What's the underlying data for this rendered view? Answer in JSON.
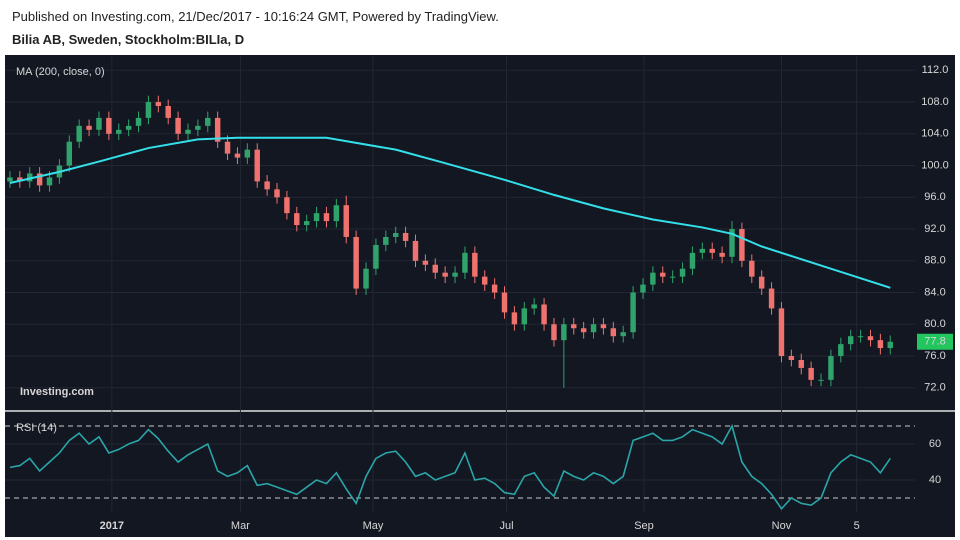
{
  "header": {
    "published": "Published on Investing.com, 21/Dec/2017 - 10:16:24 GMT, Powered by TradingView.",
    "symbol": "Bilia AB, Sweden, Stockholm:BILIa, D"
  },
  "chart_data": [
    {
      "type": "candlestick",
      "title": "MA (200, close, 0)",
      "watermark": "Investing.com",
      "x": [
        0,
        1,
        2,
        3,
        4,
        5,
        6,
        7,
        8,
        9,
        10,
        11,
        12,
        13,
        14,
        15,
        16,
        17,
        18,
        19,
        20,
        21,
        22,
        23,
        24,
        25,
        26,
        27,
        28,
        29,
        30,
        31,
        32,
        33,
        34,
        35,
        36,
        37,
        38,
        39,
        40,
        41,
        42,
        43,
        44,
        45,
        46,
        47,
        48,
        49,
        50,
        51,
        52,
        53,
        54,
        55,
        56,
        57,
        58,
        59,
        60,
        61,
        62,
        63,
        64,
        65,
        66,
        67,
        68,
        69,
        70,
        71,
        72,
        73,
        74,
        75,
        76,
        77,
        78,
        79,
        80,
        81,
        82,
        83,
        84,
        85,
        86,
        87,
        88,
        89
      ],
      "open": [
        98,
        98.5,
        98,
        99,
        97.5,
        98.5,
        100,
        103,
        105,
        104.5,
        106,
        104,
        104.5,
        105,
        106,
        108,
        107.5,
        106,
        104,
        104.5,
        105,
        106,
        103,
        101.5,
        101,
        102,
        98,
        97,
        96,
        94,
        92.5,
        93,
        94,
        93,
        95,
        91,
        84.5,
        87,
        90,
        91,
        91.5,
        90.5,
        88,
        87.5,
        86.5,
        86,
        86.5,
        89,
        86,
        85,
        84,
        81.5,
        80,
        82,
        82.5,
        80,
        78,
        80,
        79.5,
        79,
        80,
        79.5,
        78.5,
        79,
        84,
        85,
        86.5,
        86,
        86,
        87,
        89,
        89.5,
        89,
        88.5,
        92,
        88,
        86,
        84.5,
        82,
        76,
        75.5,
        74.5,
        73,
        73,
        76,
        77.5,
        78.5,
        78.5,
        78,
        77
      ],
      "high": [
        99.3,
        99.3,
        99.8,
        99.8,
        99.3,
        100.8,
        103.8,
        105.8,
        105.8,
        106.8,
        106.8,
        105.3,
        105.8,
        106.8,
        108.8,
        108.8,
        108.3,
        106.8,
        105.3,
        105.8,
        106.8,
        106.8,
        103.8,
        102.3,
        102.8,
        102.8,
        98.8,
        97.8,
        96.8,
        94.8,
        93.8,
        94.8,
        94.8,
        95.8,
        96.2,
        91.8,
        87.8,
        90.8,
        91.8,
        92.3,
        92.3,
        91.3,
        88.8,
        88.3,
        87.3,
        87.3,
        89.8,
        89.8,
        86.8,
        85.8,
        84.8,
        82.3,
        82.8,
        83.3,
        83.3,
        80.8,
        80.8,
        80.8,
        80.3,
        80.8,
        80.8,
        80.3,
        79.8,
        84.8,
        85.8,
        87.3,
        87.3,
        86.8,
        87.8,
        89.8,
        90.3,
        90.3,
        89.8,
        93,
        92.8,
        88.8,
        86.8,
        85.3,
        82.8,
        76.8,
        76.3,
        75.3,
        73.8,
        76.8,
        78.3,
        79.3,
        79.3,
        79.3,
        78.8,
        78.6
      ],
      "low": [
        97.2,
        97.2,
        97.2,
        96.7,
        96.7,
        97.7,
        99.2,
        102.2,
        103.7,
        103.7,
        103.2,
        103.2,
        103.7,
        104.2,
        105.2,
        106.7,
        105.2,
        103.2,
        103.2,
        103.7,
        104.2,
        102.2,
        100.7,
        100.2,
        100.2,
        97.2,
        96.2,
        95.2,
        93.2,
        91.7,
        91.7,
        92.2,
        92.2,
        92.2,
        90.2,
        83.7,
        83.7,
        86.2,
        89.2,
        90.2,
        89.7,
        87.2,
        86.7,
        85.7,
        85.2,
        85.2,
        85.7,
        85.2,
        84.2,
        83.2,
        80.7,
        79.2,
        79.2,
        81.2,
        79.2,
        77.2,
        72,
        78.7,
        78.2,
        78.2,
        78.7,
        77.7,
        77.7,
        78.2,
        83.2,
        84.2,
        85.2,
        85.2,
        85.2,
        86.2,
        88.2,
        88.2,
        87.7,
        87.7,
        87.2,
        85.2,
        83.7,
        81.2,
        75.2,
        74.7,
        73.7,
        72.2,
        72.2,
        72.2,
        75.2,
        76.7,
        77.7,
        77.2,
        76.2,
        76.2
      ],
      "close": [
        98.5,
        98,
        99,
        97.5,
        98.5,
        100,
        103,
        105,
        104.5,
        106,
        104,
        104.5,
        105,
        106,
        108,
        107.5,
        106,
        104,
        104.5,
        105,
        106,
        103,
        101.5,
        101,
        102,
        98,
        97,
        96,
        94,
        92.5,
        93,
        94,
        93,
        95,
        91,
        84.5,
        87,
        90,
        91,
        91.5,
        90.5,
        88,
        87.5,
        86.5,
        86,
        86.5,
        89,
        86,
        85,
        84,
        81.5,
        80,
        82,
        82.5,
        80,
        78,
        80,
        79.5,
        79,
        80,
        79.5,
        78.5,
        79,
        84,
        85,
        86.5,
        86,
        86,
        87,
        89,
        89.5,
        89,
        88.5,
        92,
        88,
        86,
        84.5,
        82,
        76,
        75.5,
        74.5,
        73,
        73,
        76,
        77.5,
        78.5,
        78.5,
        78,
        77,
        77.8
      ],
      "up_color": "#2fa36b",
      "down_color": "#f0726e",
      "ma": {
        "color": "#33e0ea",
        "x": [
          0,
          5,
          9,
          14,
          19,
          23,
          32,
          39,
          44,
          50,
          55,
          60,
          65,
          70,
          73,
          76,
          80,
          85,
          89
        ],
        "values": [
          97.8,
          99.2,
          100.5,
          102.2,
          103.3,
          103.5,
          103.5,
          102,
          100.3,
          98.2,
          96.3,
          94.6,
          93.2,
          92.2,
          91.4,
          89.8,
          88.2,
          86.2,
          84.6
        ]
      },
      "xlim": [
        -0.5,
        91.5
      ],
      "ylim": [
        69.2,
        113.8
      ],
      "yticks": [
        {
          "value": 72,
          "label": "72.0"
        },
        {
          "value": 76,
          "label": "76.0"
        },
        {
          "value": 80,
          "label": "80.0"
        },
        {
          "value": 84,
          "label": "84.0"
        },
        {
          "value": 88,
          "label": "88.0"
        },
        {
          "value": 92,
          "label": "92.0"
        },
        {
          "value": 96,
          "label": "96.0"
        },
        {
          "value": 100,
          "label": "100.0"
        },
        {
          "value": 104,
          "label": "104.0"
        },
        {
          "value": 108,
          "label": "108.0"
        },
        {
          "value": 112,
          "label": "112.0"
        }
      ],
      "grid": true
    },
    {
      "type": "line",
      "title": "RSI (14)",
      "color": "#2aa5a8",
      "x": [
        0,
        1,
        2,
        3,
        4,
        5,
        6,
        7,
        8,
        9,
        10,
        11,
        12,
        13,
        14,
        15,
        16,
        17,
        18,
        19,
        20,
        21,
        22,
        23,
        24,
        25,
        26,
        27,
        28,
        29,
        30,
        31,
        32,
        33,
        34,
        35,
        36,
        37,
        38,
        39,
        40,
        41,
        42,
        43,
        44,
        45,
        46,
        47,
        48,
        49,
        50,
        51,
        52,
        53,
        54,
        55,
        56,
        57,
        58,
        59,
        60,
        61,
        62,
        63,
        64,
        65,
        66,
        67,
        68,
        69,
        70,
        71,
        72,
        73,
        74,
        75,
        76,
        77,
        78,
        79,
        80,
        81,
        82,
        83,
        84,
        85,
        86,
        87,
        88,
        89
      ],
      "values": [
        47,
        48,
        52,
        45,
        50,
        55,
        62,
        66,
        60,
        64,
        55,
        57,
        60,
        62,
        68,
        63,
        56,
        50,
        54,
        57,
        60,
        45,
        42,
        44,
        48,
        37,
        38,
        36,
        34,
        32,
        36,
        40,
        38,
        44,
        35,
        27,
        42,
        52,
        55,
        56,
        50,
        42,
        44,
        40,
        42,
        44,
        55,
        40,
        41,
        38,
        33,
        32,
        42,
        44,
        36,
        31,
        45,
        42,
        40,
        44,
        42,
        38,
        42,
        62,
        64,
        66,
        62,
        62,
        64,
        68,
        66,
        64,
        60,
        70,
        50,
        42,
        38,
        32,
        24,
        30,
        27,
        26,
        30,
        44,
        50,
        54,
        52,
        50,
        44,
        52
      ],
      "levels": [
        70,
        30
      ],
      "xlim": [
        -0.5,
        91.5
      ],
      "ylim": [
        22.2,
        77.8
      ],
      "yticks": [
        40,
        60
      ],
      "xticks": [
        {
          "value": 10.3,
          "label": "2017"
        },
        {
          "value": 23.3,
          "label": "Mar"
        },
        {
          "value": 36.7,
          "label": "May"
        },
        {
          "value": 50.2,
          "label": "Jul"
        },
        {
          "value": 64.1,
          "label": "Sep"
        },
        {
          "value": 78,
          "label": "Nov"
        },
        {
          "value": 85.6,
          "label": "5"
        }
      ]
    }
  ]
}
